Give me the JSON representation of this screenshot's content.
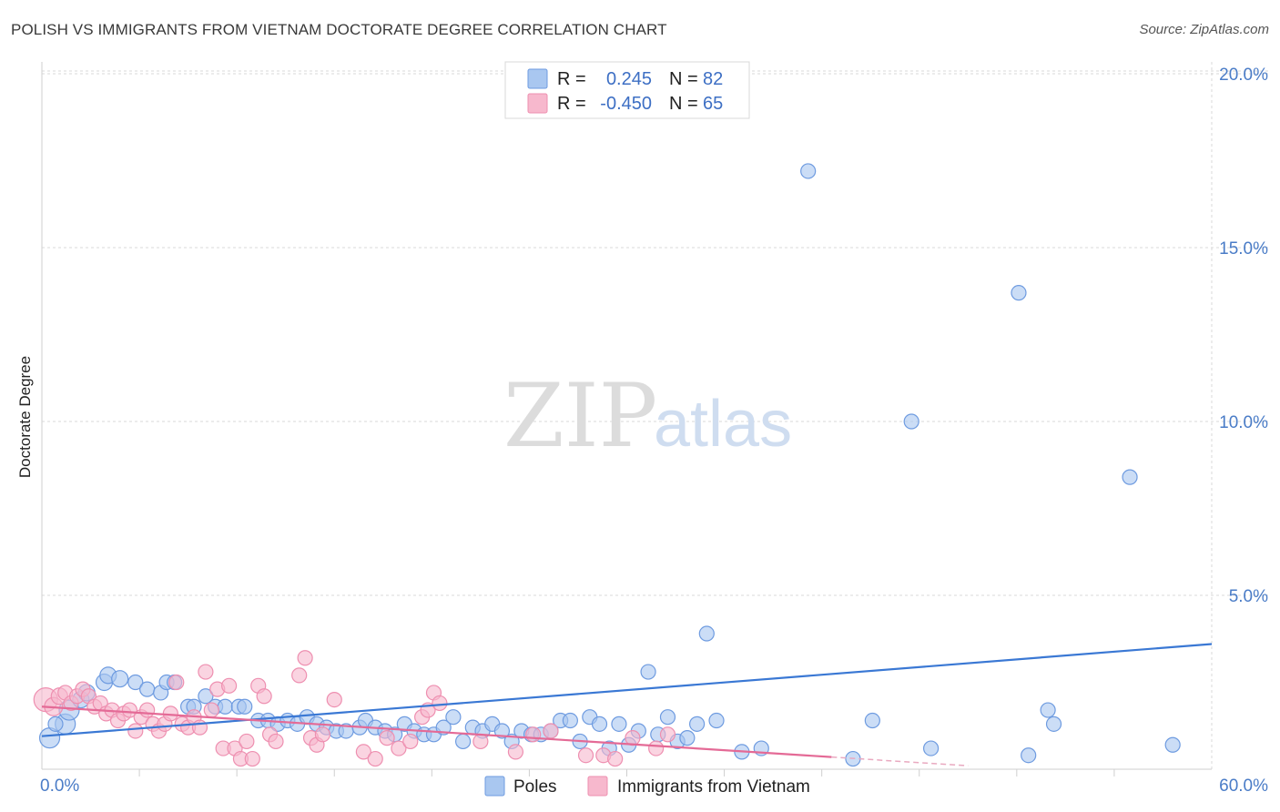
{
  "header": {
    "title": "POLISH VS IMMIGRANTS FROM VIETNAM DOCTORATE DEGREE CORRELATION CHART",
    "source": "Source: ZipAtlas.com"
  },
  "watermark": {
    "zip": "ZIP",
    "atlas": "atlas"
  },
  "legend": {
    "rows": [
      {
        "r_label": "R =",
        "r_value": "0.245",
        "n_label": "N =",
        "n_value": "82",
        "color": "#a9c7f0"
      },
      {
        "r_label": "R =",
        "r_value": "-0.450",
        "n_label": "N =",
        "n_value": "65",
        "color": "#f7b8cd"
      }
    ]
  },
  "bottom_legend": [
    {
      "label": "Poles",
      "color": "#a9c7f0"
    },
    {
      "label": "Immigrants from Vietnam",
      "color": "#f7b8cd"
    }
  ],
  "chart_data": {
    "type": "scatter",
    "ylabel": "Doctorate Degree",
    "xlim": [
      0,
      60
    ],
    "ylim": [
      0,
      21
    ],
    "x_tick_labels": [
      {
        "value": 0,
        "label": "0.0%"
      },
      {
        "value": 60,
        "label": "60.0%"
      }
    ],
    "y_tick_labels": [
      {
        "value": 5,
        "label": "5.0%"
      },
      {
        "value": 10,
        "label": "10.0%"
      },
      {
        "value": 15,
        "label": "15.0%"
      },
      {
        "value": 20,
        "label": "20.0%"
      }
    ],
    "grid": true,
    "series": [
      {
        "name": "Poles",
        "color": "#a9c7f0",
        "stroke": "#6e9be0",
        "trend": {
          "x": [
            0,
            60
          ],
          "y": [
            0.95,
            3.6
          ],
          "color": "#3a78d4"
        },
        "points": [
          [
            0.4,
            0.9,
            22
          ],
          [
            1.2,
            1.3,
            22
          ],
          [
            1.4,
            1.7,
            22
          ],
          [
            2.0,
            2.0,
            18
          ],
          [
            2.3,
            2.2,
            18
          ],
          [
            3.2,
            2.5,
            18
          ],
          [
            3.4,
            2.7,
            18
          ],
          [
            4.0,
            2.6,
            18
          ],
          [
            4.8,
            2.5,
            16
          ],
          [
            5.4,
            2.3,
            16
          ],
          [
            6.1,
            2.2,
            16
          ],
          [
            6.4,
            2.5,
            16
          ],
          [
            6.8,
            2.5,
            16
          ],
          [
            7.5,
            1.8,
            16
          ],
          [
            7.8,
            1.8,
            16
          ],
          [
            8.4,
            2.1,
            16
          ],
          [
            8.9,
            1.8,
            16
          ],
          [
            9.4,
            1.8,
            16
          ],
          [
            10.1,
            1.8,
            16
          ],
          [
            10.4,
            1.8,
            16
          ],
          [
            11.1,
            1.4,
            16
          ],
          [
            11.6,
            1.4,
            16
          ],
          [
            12.1,
            1.3,
            16
          ],
          [
            12.6,
            1.4,
            16
          ],
          [
            13.1,
            1.3,
            16
          ],
          [
            13.6,
            1.5,
            16
          ],
          [
            14.1,
            1.3,
            16
          ],
          [
            14.6,
            1.2,
            16
          ],
          [
            15.1,
            1.1,
            16
          ],
          [
            15.6,
            1.1,
            16
          ],
          [
            16.3,
            1.2,
            16
          ],
          [
            16.6,
            1.4,
            16
          ],
          [
            17.1,
            1.2,
            16
          ],
          [
            17.6,
            1.1,
            16
          ],
          [
            18.1,
            1.0,
            16
          ],
          [
            18.6,
            1.3,
            16
          ],
          [
            19.1,
            1.1,
            16
          ],
          [
            19.6,
            1.0,
            16
          ],
          [
            20.1,
            1.0,
            16
          ],
          [
            20.6,
            1.2,
            16
          ],
          [
            21.1,
            1.5,
            16
          ],
          [
            21.6,
            0.8,
            16
          ],
          [
            22.1,
            1.2,
            16
          ],
          [
            22.6,
            1.1,
            16
          ],
          [
            23.1,
            1.3,
            16
          ],
          [
            23.6,
            1.1,
            16
          ],
          [
            24.1,
            0.8,
            16
          ],
          [
            24.6,
            1.1,
            16
          ],
          [
            25.1,
            1.0,
            16
          ],
          [
            25.6,
            1.0,
            16
          ],
          [
            26.1,
            1.1,
            16
          ],
          [
            26.6,
            1.4,
            16
          ],
          [
            27.1,
            1.4,
            16
          ],
          [
            27.6,
            0.8,
            16
          ],
          [
            28.1,
            1.5,
            16
          ],
          [
            28.6,
            1.3,
            16
          ],
          [
            29.1,
            0.6,
            16
          ],
          [
            29.6,
            1.3,
            16
          ],
          [
            30.1,
            0.7,
            16
          ],
          [
            30.6,
            1.1,
            16
          ],
          [
            31.1,
            2.8,
            16
          ],
          [
            31.6,
            1.0,
            16
          ],
          [
            32.1,
            1.5,
            16
          ],
          [
            32.6,
            0.8,
            16
          ],
          [
            33.1,
            0.9,
            16
          ],
          [
            33.6,
            1.3,
            16
          ],
          [
            34.1,
            3.9,
            16
          ],
          [
            34.6,
            1.4,
            16
          ],
          [
            35.9,
            0.5,
            16
          ],
          [
            36.9,
            0.6,
            16
          ],
          [
            39.3,
            17.2,
            16
          ],
          [
            41.6,
            0.3,
            16
          ],
          [
            42.6,
            1.4,
            16
          ],
          [
            44.6,
            10.0,
            16
          ],
          [
            45.6,
            0.6,
            16
          ],
          [
            50.1,
            13.7,
            16
          ],
          [
            50.6,
            0.4,
            16
          ],
          [
            51.6,
            1.7,
            16
          ],
          [
            51.9,
            1.3,
            16
          ],
          [
            55.8,
            8.4,
            16
          ],
          [
            58.0,
            0.7,
            16
          ],
          [
            0.7,
            1.3,
            16
          ]
        ]
      },
      {
        "name": "Immigrants from Vietnam",
        "color": "#f7b8cd",
        "stroke": "#ee8fb0",
        "trend": {
          "x": [
            0,
            40.5
          ],
          "y": [
            1.8,
            0.35
          ],
          "color": "#e46a96"
        },
        "trend_ext": {
          "x": [
            40.5,
            47.5
          ],
          "y": [
            0.35,
            0.1
          ],
          "color": "#e9a9c0"
        },
        "points": [
          [
            0.2,
            2.0,
            26
          ],
          [
            0.6,
            1.8,
            20
          ],
          [
            0.9,
            2.1,
            18
          ],
          [
            1.2,
            2.2,
            16
          ],
          [
            1.5,
            1.9,
            16
          ],
          [
            1.8,
            2.1,
            16
          ],
          [
            2.1,
            2.3,
            16
          ],
          [
            2.4,
            2.1,
            16
          ],
          [
            2.7,
            1.8,
            16
          ],
          [
            3.0,
            1.9,
            16
          ],
          [
            3.3,
            1.6,
            16
          ],
          [
            3.6,
            1.7,
            16
          ],
          [
            3.9,
            1.4,
            16
          ],
          [
            4.2,
            1.6,
            16
          ],
          [
            4.5,
            1.7,
            16
          ],
          [
            4.8,
            1.1,
            16
          ],
          [
            5.1,
            1.5,
            16
          ],
          [
            5.4,
            1.7,
            16
          ],
          [
            5.7,
            1.3,
            16
          ],
          [
            6.0,
            1.1,
            16
          ],
          [
            6.3,
            1.3,
            16
          ],
          [
            6.6,
            1.6,
            16
          ],
          [
            6.9,
            2.5,
            16
          ],
          [
            7.2,
            1.3,
            16
          ],
          [
            7.5,
            1.2,
            16
          ],
          [
            7.8,
            1.5,
            16
          ],
          [
            8.1,
            1.2,
            16
          ],
          [
            8.4,
            2.8,
            16
          ],
          [
            8.7,
            1.7,
            16
          ],
          [
            9.0,
            2.3,
            16
          ],
          [
            9.3,
            0.6,
            16
          ],
          [
            9.6,
            2.4,
            16
          ],
          [
            9.9,
            0.6,
            16
          ],
          [
            10.2,
            0.3,
            16
          ],
          [
            10.5,
            0.8,
            16
          ],
          [
            10.8,
            0.3,
            16
          ],
          [
            11.1,
            2.4,
            16
          ],
          [
            11.4,
            2.1,
            16
          ],
          [
            11.7,
            1.0,
            16
          ],
          [
            12.0,
            0.8,
            16
          ],
          [
            13.2,
            2.7,
            16
          ],
          [
            13.5,
            3.2,
            16
          ],
          [
            13.8,
            0.9,
            16
          ],
          [
            14.1,
            0.7,
            16
          ],
          [
            14.4,
            1.0,
            16
          ],
          [
            15.0,
            2.0,
            16
          ],
          [
            16.5,
            0.5,
            16
          ],
          [
            17.1,
            0.3,
            16
          ],
          [
            17.7,
            0.9,
            16
          ],
          [
            18.3,
            0.6,
            16
          ],
          [
            18.9,
            0.8,
            16
          ],
          [
            19.5,
            1.5,
            16
          ],
          [
            19.8,
            1.7,
            16
          ],
          [
            20.1,
            2.2,
            16
          ],
          [
            20.4,
            1.9,
            16
          ],
          [
            22.5,
            0.8,
            16
          ],
          [
            24.3,
            0.5,
            16
          ],
          [
            25.2,
            1.0,
            16
          ],
          [
            26.1,
            1.1,
            16
          ],
          [
            27.9,
            0.4,
            16
          ],
          [
            28.8,
            0.4,
            16
          ],
          [
            29.4,
            0.3,
            16
          ],
          [
            30.3,
            0.9,
            16
          ],
          [
            31.5,
            0.6,
            16
          ],
          [
            32.1,
            1.0,
            16
          ]
        ]
      }
    ]
  }
}
